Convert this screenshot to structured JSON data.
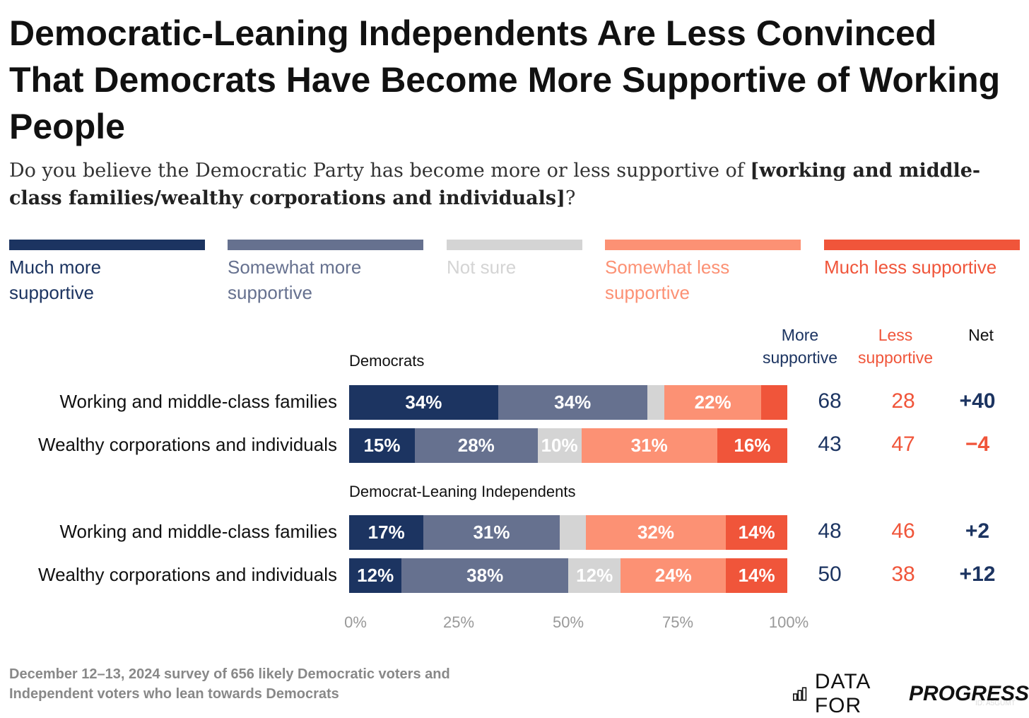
{
  "title": "Democratic-Leaning Independents Are Less Convinced That Democrats Have Become More Supportive of Working People",
  "subtitle": {
    "pre": "Do you believe the Democratic Party has become more or less supportive of ",
    "bold": "[working and middle-class families/wealthy corporations and individuals]",
    "post": "?"
  },
  "legend": [
    {
      "label": "Much more supportive",
      "color": "#1c3461"
    },
    {
      "label": "Somewhat more supportive",
      "color": "#66718f"
    },
    {
      "label": "Not sure",
      "color": "#d4d4d4"
    },
    {
      "label": "Somewhat less supportive",
      "color": "#fc9174"
    },
    {
      "label": "Much less supportive",
      "color": "#f0553a"
    }
  ],
  "columns": {
    "more": "More supportive",
    "less": "Less supportive",
    "net": "Net"
  },
  "chart_data": {
    "type": "bar",
    "stacked": true,
    "orientation": "horizontal",
    "title": "Democratic-Leaning Independents Are Less Convinced That Democrats Have Become More Supportive of Working People",
    "series_names": [
      "Much more supportive",
      "Somewhat more supportive",
      "Not sure",
      "Somewhat less supportive",
      "Much less supportive"
    ],
    "groups": [
      {
        "name": "Democrats",
        "rows": [
          {
            "label": "Working and middle-class families",
            "values": [
              34,
              34,
              4,
              22,
              6
            ],
            "labels": [
              "34%",
              "34%",
              "",
              "22%",
              ""
            ],
            "more": "68",
            "less": "28",
            "net": "+40"
          },
          {
            "label": "Wealthy corporations and individuals",
            "values": [
              15,
              28,
              10,
              31,
              16
            ],
            "labels": [
              "15%",
              "28%",
              "10%",
              "31%",
              "16%"
            ],
            "more": "43",
            "less": "47",
            "net": "−4"
          }
        ]
      },
      {
        "name": "Democrat-Leaning Independents",
        "rows": [
          {
            "label": "Working and middle-class families",
            "values": [
              17,
              31,
              6,
              32,
              14
            ],
            "labels": [
              "17%",
              "31%",
              "",
              "32%",
              "14%"
            ],
            "more": "48",
            "less": "46",
            "net": "+2"
          },
          {
            "label": "Wealthy corporations and individuals",
            "values": [
              12,
              38,
              12,
              24,
              14
            ],
            "labels": [
              "12%",
              "38%",
              "12%",
              "24%",
              "14%"
            ],
            "more": "50",
            "less": "38",
            "net": "+12"
          }
        ]
      }
    ],
    "xticks": [
      "0%",
      "25%",
      "50%",
      "75%",
      "100%"
    ],
    "xlim": [
      0,
      100
    ]
  },
  "footnote": "December 12–13, 2024 survey of 656 likely Democratic voters and Independent voters who lean towards Democrats",
  "logo": {
    "plain": "DATA FOR",
    "bold": "PROGRESS",
    "id": "ID: A5GUMT"
  }
}
